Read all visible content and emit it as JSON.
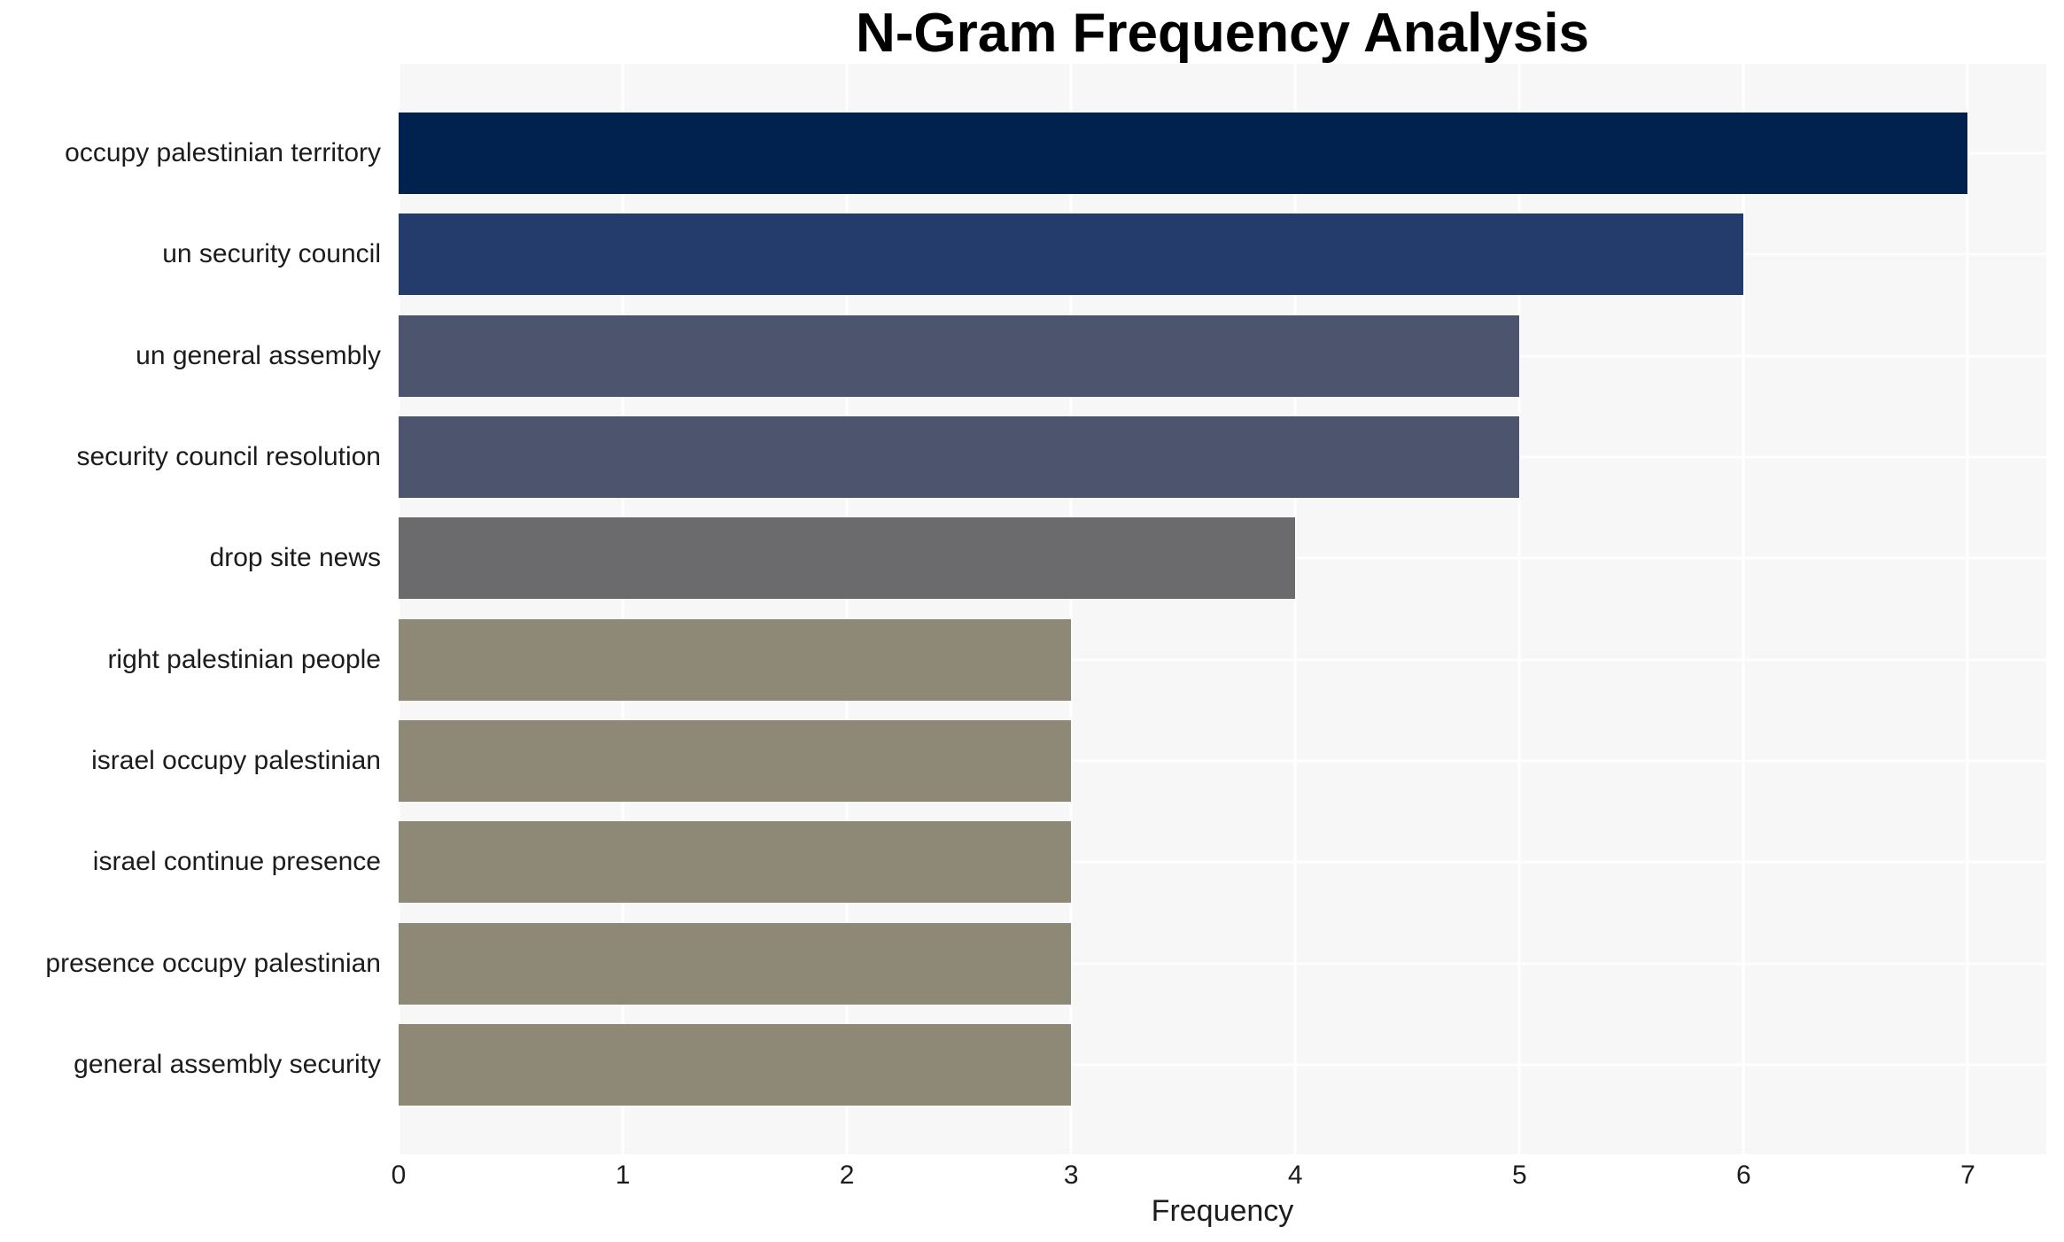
{
  "chart_data": {
    "type": "bar",
    "orientation": "horizontal",
    "title": "N-Gram Frequency Analysis",
    "xlabel": "Frequency",
    "ylabel": "",
    "categories": [
      "occupy palestinian territory",
      "un security council",
      "un general assembly",
      "security council resolution",
      "drop site news",
      "right palestinian people",
      "israel occupy palestinian",
      "israel continue presence",
      "presence occupy palestinian",
      "general assembly security"
    ],
    "values": [
      7,
      6,
      5,
      5,
      4,
      3,
      3,
      3,
      3,
      3
    ],
    "bar_colors": [
      "#01224e",
      "#233c6b",
      "#4d556e",
      "#4d556e",
      "#6b6b6e",
      "#8e8977",
      "#8e8977",
      "#8e8977",
      "#8e8977",
      "#8e8977"
    ],
    "xticks": [
      0,
      1,
      2,
      3,
      4,
      5,
      6,
      7
    ],
    "xlim": [
      0,
      7.35
    ],
    "grid": "on-white",
    "legend": "none",
    "plot_background": "#f7f7f7",
    "figure_background": "#ffffff",
    "text_color": "#1c1c1c",
    "title_color": "#000000"
  }
}
